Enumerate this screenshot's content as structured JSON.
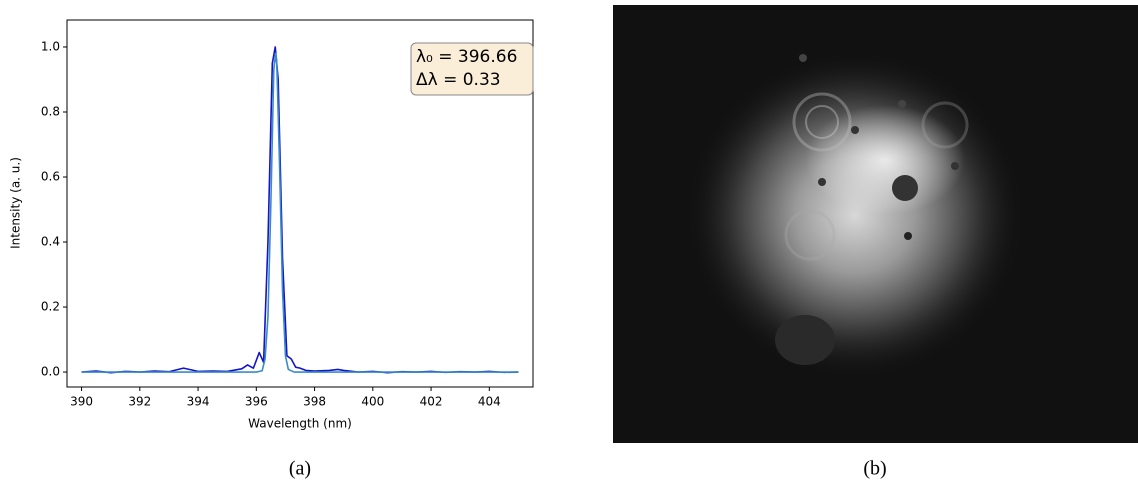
{
  "chart_data": {
    "type": "line",
    "xlabel": "Wavelength (nm)",
    "ylabel": "Intensity (a. u.)",
    "xlim": [
      389.5,
      405.5
    ],
    "ylim": [
      -0.046,
      1.083
    ],
    "xticks": [
      390,
      392,
      394,
      396,
      398,
      400,
      402,
      404
    ],
    "yticks": [
      {
        "value": 0,
        "label": "0.0"
      },
      0.2,
      0.4,
      0.6,
      0.8,
      {
        "value": 1,
        "label": "1.0"
      }
    ],
    "annotation": [
      "λ₀ = 396.66",
      "Δλ = 0.33"
    ],
    "series": [
      {
        "color": "#1414c8",
        "x": [
          390,
          390.5,
          391,
          391.5,
          392,
          392.5,
          393,
          393.5,
          394,
          394.5,
          395,
          395.5,
          395.7,
          395.9,
          396.1,
          396.25,
          396.4,
          396.55,
          396.65,
          396.75,
          396.9,
          397.05,
          397.2,
          397.35,
          397.5,
          397.7,
          398,
          398.5,
          398.8,
          399,
          399.5,
          400,
          400.5,
          401,
          401.5,
          402,
          402.5,
          403,
          403.5,
          404,
          404.5,
          405
        ],
        "values": [
          0.0,
          0.003,
          -0.002,
          0.002,
          0.0,
          0.003,
          0.001,
          0.012,
          0.002,
          0.003,
          0.002,
          0.01,
          0.022,
          0.012,
          0.06,
          0.03,
          0.4,
          0.95,
          1.0,
          0.9,
          0.35,
          0.05,
          0.04,
          0.015,
          0.012,
          0.005,
          0.003,
          0.005,
          0.008,
          0.005,
          0.0,
          0.002,
          -0.002,
          0.001,
          0.0,
          0.002,
          -0.001,
          0.001,
          0.0,
          0.002,
          -0.001,
          0.0
        ]
      },
      {
        "color": "#3a8cc8",
        "x": [
          390,
          396,
          396.2,
          396.3,
          396.4,
          396.5,
          396.6,
          396.66,
          396.7,
          396.8,
          396.9,
          397,
          397.1,
          397.3,
          405
        ],
        "values": [
          0,
          0,
          0.004,
          0.04,
          0.17,
          0.52,
          0.93,
          0.98,
          0.96,
          0.63,
          0.25,
          0.05,
          0.008,
          0,
          0
        ]
      }
    ]
  },
  "captions": [
    "(a)",
    "(b)"
  ]
}
